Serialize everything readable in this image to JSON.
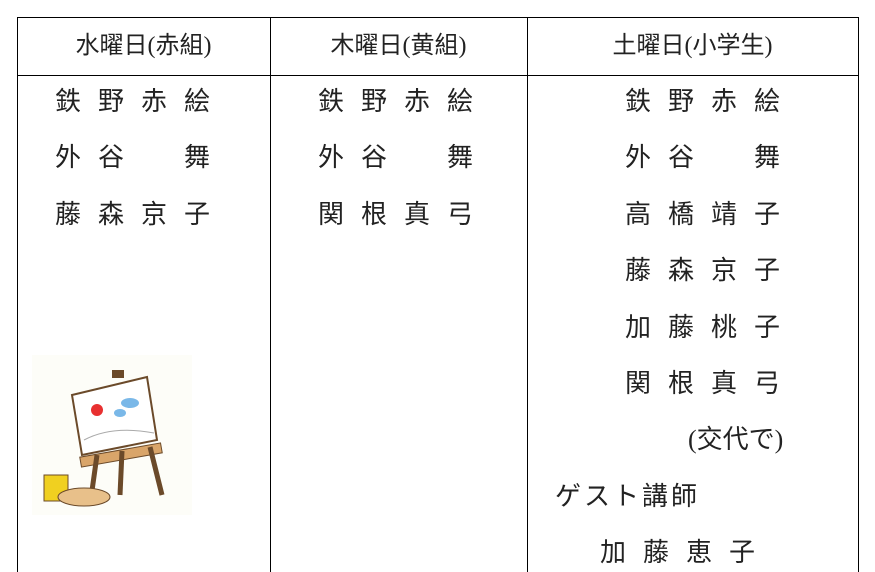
{
  "table": {
    "headers": [
      "水曜日(赤組)",
      "木曜日(黄組)",
      "土曜日(小学生)"
    ],
    "columns": [
      [
        "鉄野赤絵",
        "外谷　舞",
        "藤森京子"
      ],
      [
        "鉄野赤絵",
        "外谷　舞",
        "関根真弓"
      ],
      [
        "鉄野赤絵",
        "外谷　舞",
        "高橋靖子",
        "藤森京子",
        "加藤桃子",
        "関根真弓",
        "(交代で)",
        "ゲスト講師",
        "加藤恵子"
      ]
    ]
  }
}
